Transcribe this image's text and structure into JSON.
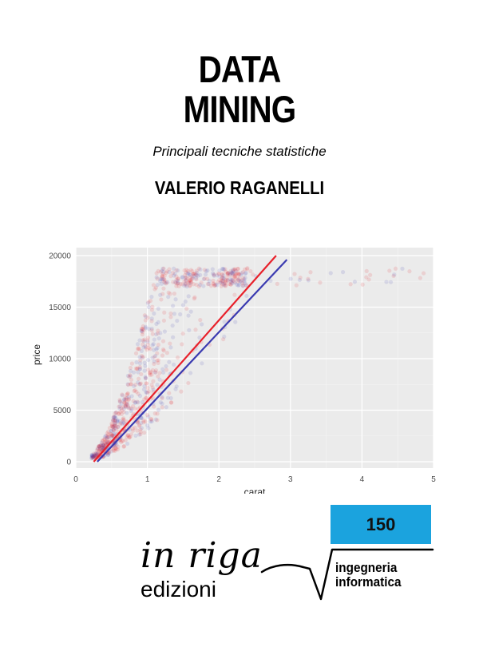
{
  "cover": {
    "title_line1": "DATA",
    "title_line2": "MINING",
    "subtitle": "Principali tecniche statistiche",
    "author": "VALERIO RAGANELLI"
  },
  "series": {
    "number": "150",
    "name_line1": "ingegneria",
    "name_line2": "informatica",
    "badge_color": "#1ba3de"
  },
  "publisher": {
    "logo_script": "in riga",
    "logo_word": "edizioni"
  },
  "chart_data": {
    "type": "scatter",
    "xlabel": "carat",
    "ylabel": "price",
    "xlim": [
      0,
      5
    ],
    "ylim": [
      0,
      20000
    ],
    "xticks": [
      0,
      1,
      2,
      3,
      4,
      5
    ],
    "yticks": [
      0,
      5000,
      10000,
      15000,
      20000
    ],
    "grid": true,
    "background": "#ebebeb",
    "series": [
      {
        "color": "#e8202a",
        "fit": [
          [
            0.25,
            0
          ],
          [
            2.8,
            20000
          ]
        ]
      },
      {
        "color": "#3a3ab0",
        "fit": [
          [
            0.3,
            0
          ],
          [
            2.95,
            19600
          ]
        ]
      }
    ]
  }
}
